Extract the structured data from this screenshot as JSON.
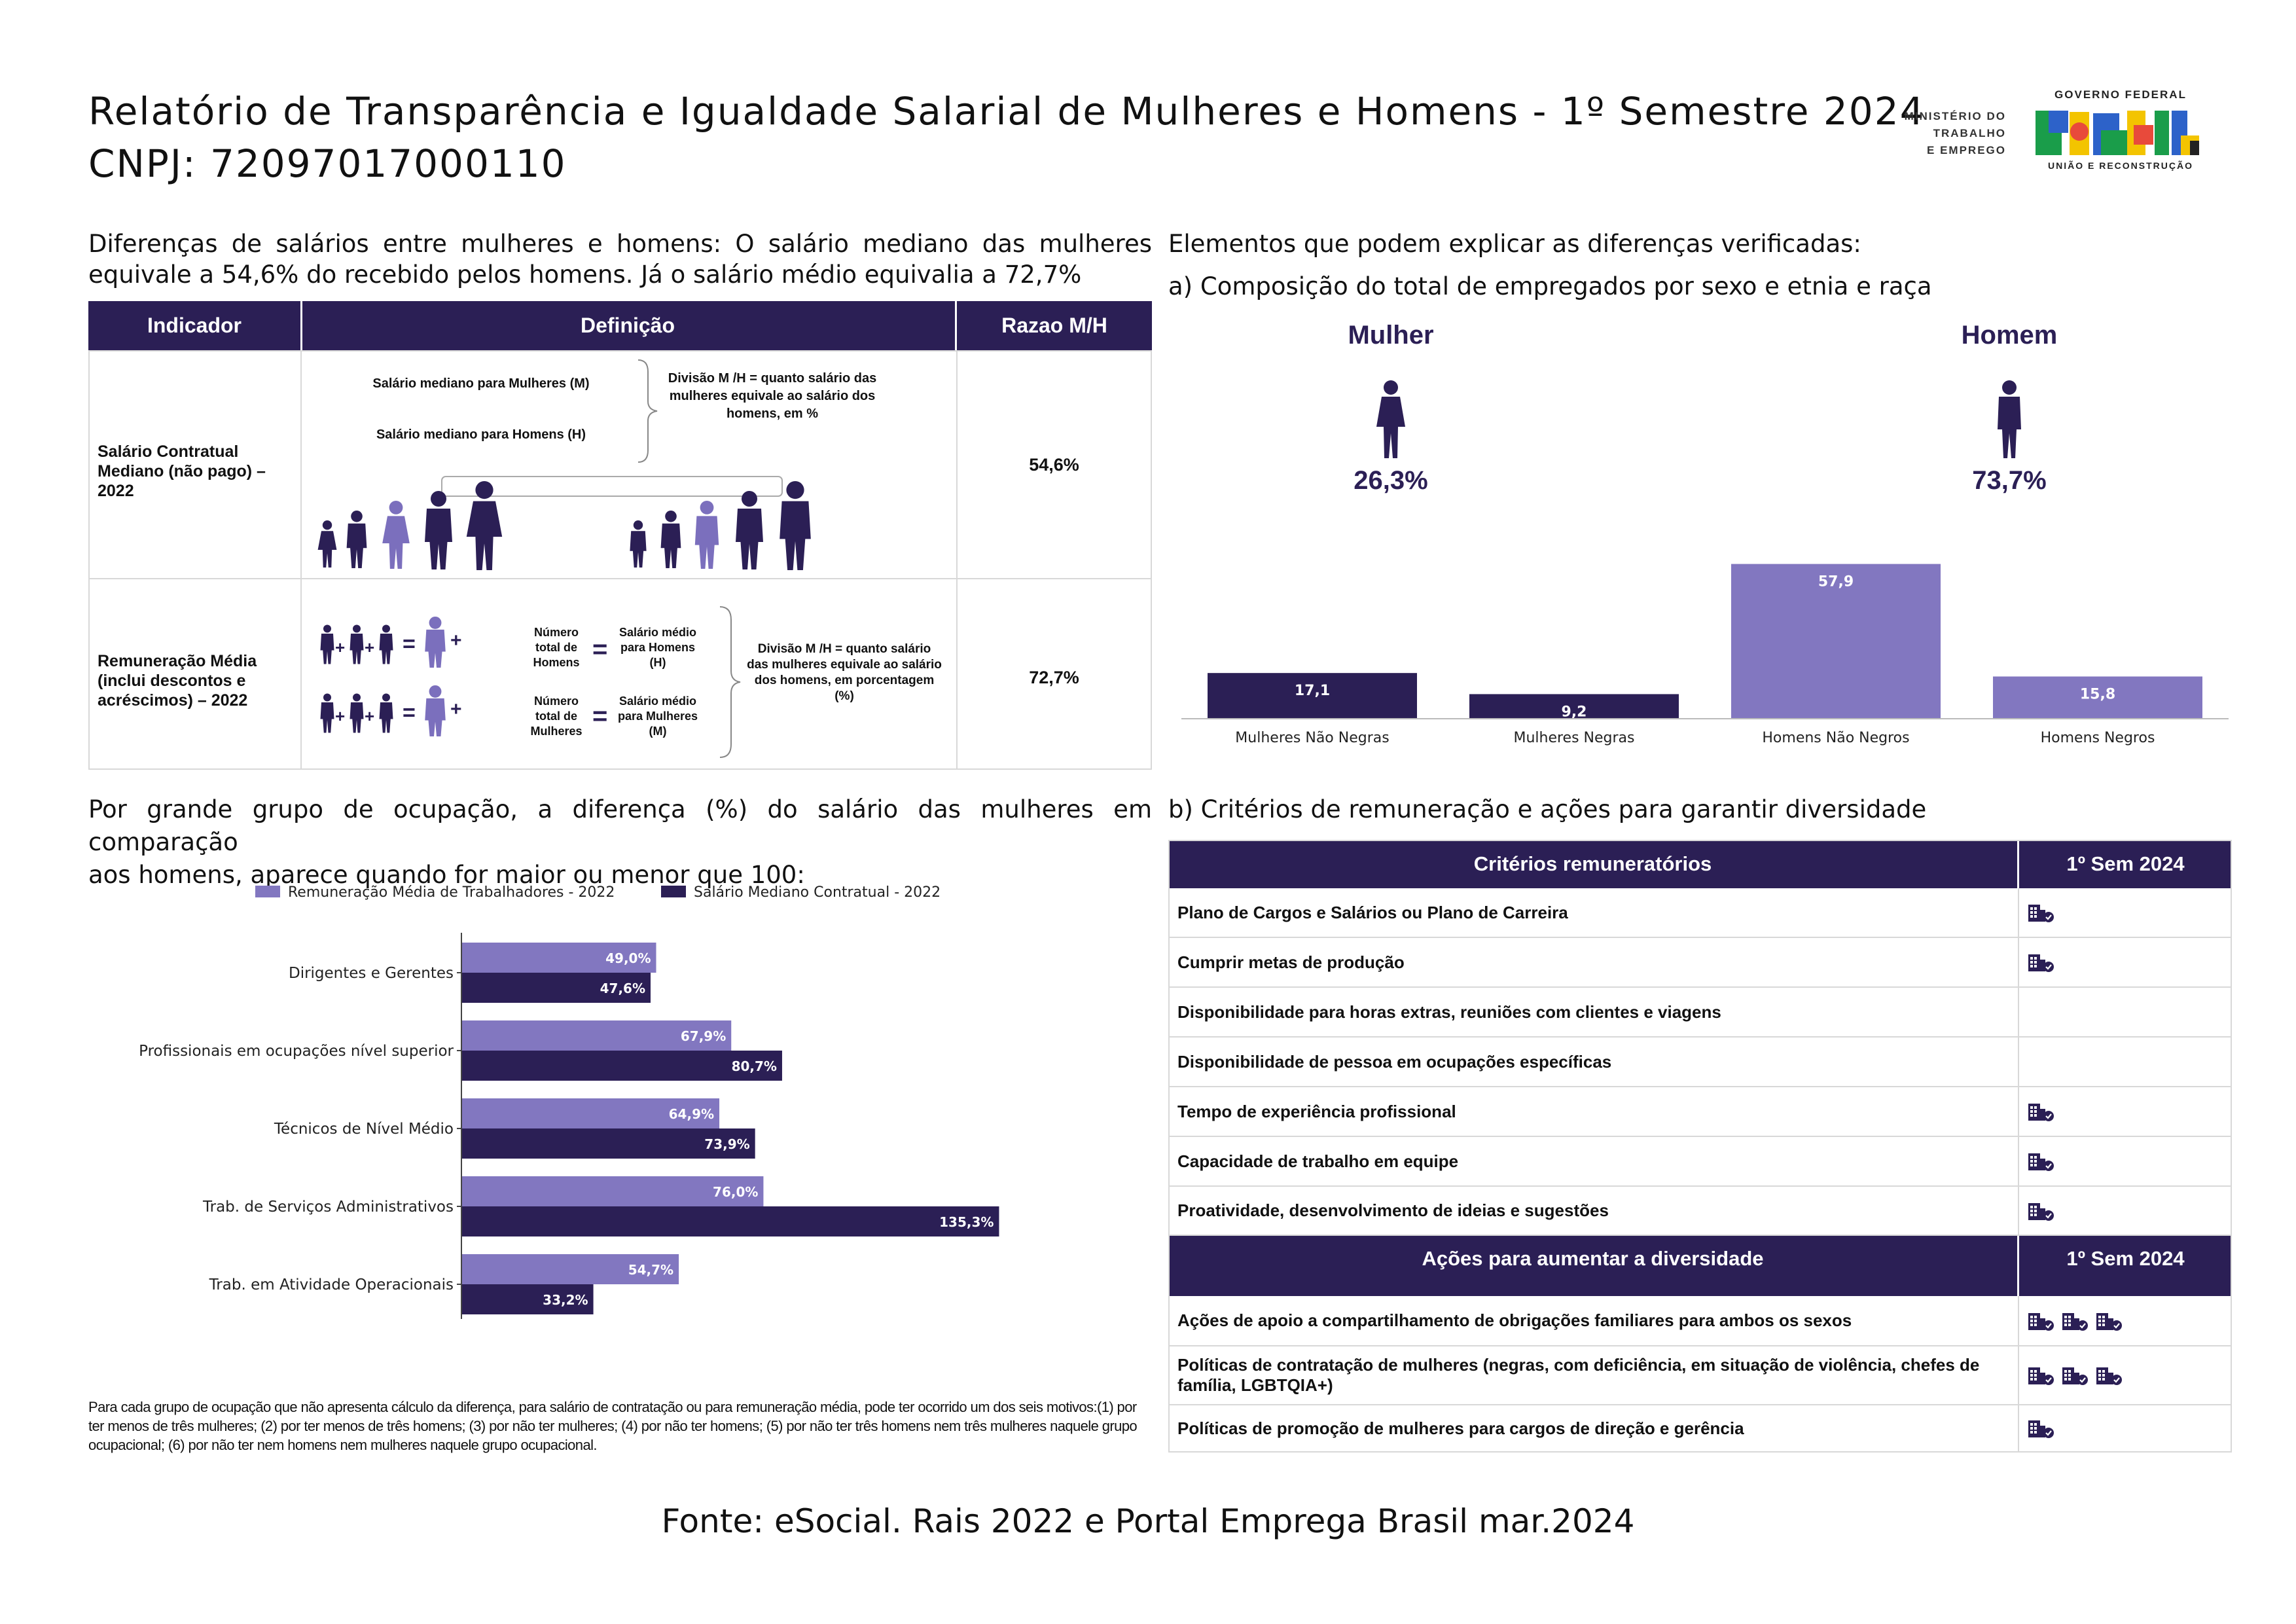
{
  "header": {
    "title": "Relatório de Transparência e Igualdade Salarial de Mulheres e Homens - 1º Semestre 2024",
    "cnpj": "CNPJ: 72097017000110",
    "ministry": [
      "MINISTÉRIO DO",
      "TRABALHO",
      "E EMPREGO"
    ],
    "gov_top": "GOVERNO FEDERAL",
    "gov_word": "BRASIL",
    "gov_bottom": "UNIÃO E RECONSTRUÇÃO"
  },
  "diff": {
    "intro_line1": "Diferenças de salários entre mulheres e homens: O salário mediano das mulheres",
    "intro_line2": "equivale a 54,6% do recebido pelos homens. Já o salário médio equivalia a 72,7%",
    "headers": [
      "Indicador",
      "Definição",
      "Razao M/H"
    ],
    "row1": {
      "indicator": "Salário Contratual Mediano (não pago) – 2022",
      "def_m": "Salário mediano para Mulheres (M)",
      "def_h": "Salário mediano para Homens (H)",
      "div": "Divisão M /H = quanto salário das mulheres equivale ao salário dos homens, em %",
      "ratio": "54,6%"
    },
    "row2": {
      "indicator": "Remuneração Média (inclui descontos e acréscimos) – 2022",
      "num_h": "Número total de Homens",
      "sal_h": "Salário médio para Homens (H)",
      "num_m": "Número total de Mulheres",
      "sal_m": "Salário médio para Mulheres (M)",
      "div": "Divisão M /H = quanto salário das mulheres equivale ao salário dos homens, em porcentagem (%)",
      "ratio": "72,7%"
    }
  },
  "composition": {
    "intro": "Elementos que podem explicar as diferenças verificadas:",
    "subtitle": "a) Composição do total de empregados por sexo e etnia e raça",
    "mulher_label": "Mulher",
    "mulher_pct": "26,3%",
    "homem_label": "Homem",
    "homem_pct": "73,7%"
  },
  "occupation": {
    "intro_line1": "Por grande grupo de ocupação, a diferença (%) do salário das mulheres em comparação",
    "intro_line2": "aos homens, aparece quando for maior ou menor que 100:",
    "footnote": "Para cada grupo de ocupação que não apresenta cálculo da diferença, para salário de contratação ou para remuneração média, pode ter ocorrido um dos seis motivos:(1) por ter menos de três mulheres; (2) por ter menos de três homens; (3) por não ter mulheres; (4) por não ter homens; (5) por não ter três homens nem três mulheres naquele grupo ocupacional; (6) por não ter nem homens nem mulheres naquele grupo ocupacional."
  },
  "criteria": {
    "subtitle": "b) Critérios de remuneração e ações para garantir diversidade",
    "header1": "Critérios remuneratórios",
    "header1_col": "1º Sem 2024",
    "rows": [
      {
        "label": "Plano de Cargos e Salários ou Plano de Carreira",
        "icons": 1
      },
      {
        "label": "Cumprir metas de produção",
        "icons": 1
      },
      {
        "label": "Disponibilidade para horas extras, reuniões com clientes e viagens",
        "icons": 0
      },
      {
        "label": "Disponibilidade de pessoa em ocupações específicas",
        "icons": 0
      },
      {
        "label": "Tempo de experiência profissional",
        "icons": 1
      },
      {
        "label": "Capacidade de trabalho em equipe",
        "icons": 1
      },
      {
        "label": "Proatividade, desenvolvimento de ideias e sugestões",
        "icons": 1
      }
    ],
    "header2": "Ações para aumentar a diversidade",
    "header2_col": "1º Sem 2024",
    "actions": [
      {
        "label": "Ações de apoio a compartilhamento de obrigações familiares para ambos os sexos",
        "icons": 3
      },
      {
        "label": "Políticas de contratação de mulheres (negras, com deficiência, em situação de violência, chefes de família, LGBTQIA+)",
        "icons": 3
      },
      {
        "label": "Políticas de promoção de mulheres para cargos de direção e gerência",
        "icons": 1
      }
    ],
    "icon_name": "building-check-icon"
  },
  "footer": {
    "source": "Fonte: eSocial. Rais 2022 e Portal Emprega Brasil mar.2024"
  },
  "colors": {
    "dark": "#2b1f55",
    "light": "#8277c0",
    "grid": "#d8d8d8"
  },
  "chart_data": [
    {
      "type": "bar",
      "categories": [
        "Mulheres Não Negras",
        "Mulheres Negras",
        "Homens Não Negros",
        "Homens Negros"
      ],
      "values": [
        17.1,
        9.2,
        57.9,
        15.8
      ],
      "labels": [
        "17,1",
        "9,2",
        "57,9",
        "15,8"
      ],
      "colors": [
        "#2b1f55",
        "#2b1f55",
        "#8277c0",
        "#8277c0"
      ],
      "ylim": [
        0,
        60
      ]
    },
    {
      "type": "bar",
      "orientation": "horizontal",
      "categories": [
        "Dirigentes e Gerentes",
        "Profissionais em ocupações nível superior",
        "Técnicos de Nível Médio",
        "Trab. de Serviços Administrativos",
        "Trab. em Atividade Operacionais"
      ],
      "series": [
        {
          "name": "Remuneração Média de Trabalhadores - 2022",
          "values": [
            49.0,
            67.9,
            64.9,
            76.0,
            54.7
          ],
          "labels": [
            "49,0%",
            "67,9%",
            "64,9%",
            "76,0%",
            "54,7%"
          ],
          "color": "#8277c0"
        },
        {
          "name": "Salário Mediano Contratual - 2022",
          "values": [
            47.6,
            80.7,
            73.9,
            135.3,
            33.2
          ],
          "labels": [
            "47,6%",
            "80,7%",
            "73,9%",
            "135,3%",
            "33,2%"
          ],
          "color": "#2b1f55"
        }
      ],
      "xlim": [
        0,
        140
      ],
      "legend": "top"
    }
  ]
}
